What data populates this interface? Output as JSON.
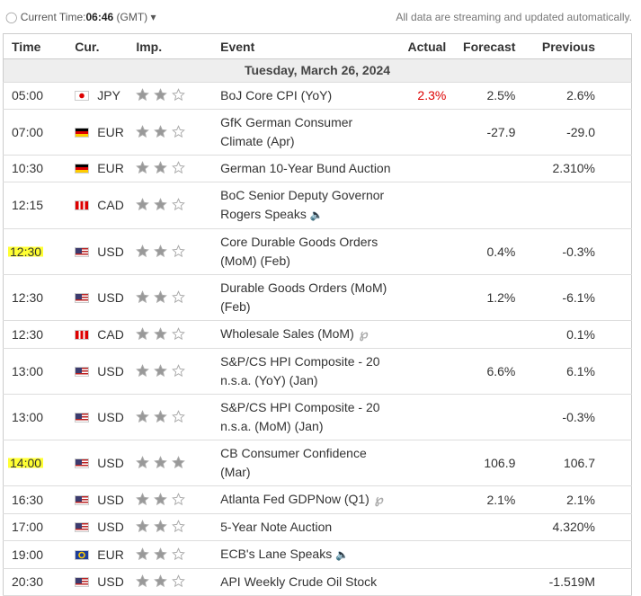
{
  "header": {
    "current_time_label": "Current Time:",
    "current_time": "06:46",
    "timezone": "(GMT)",
    "notice": "All data are streaming and updated automatically."
  },
  "table": {
    "columns": [
      "Time",
      "Cur.",
      "Imp.",
      "Event",
      "Actual",
      "Forecast",
      "Previous"
    ],
    "date": "Tuesday, March 26, 2024",
    "rows": [
      {
        "time": "05:00",
        "currency": "JPY",
        "importance": 2,
        "event": "BoJ Core CPI (YoY)",
        "actual": "2.3%",
        "forecast": "2.5%",
        "previous": "2.6%"
      },
      {
        "time": "07:00",
        "currency": "EUR",
        "importance": 2,
        "event": "GfK German Consumer Climate (Apr)",
        "forecast": "-27.9",
        "previous": "-29.0"
      },
      {
        "time": "10:30",
        "currency": "EUR",
        "importance": 2,
        "event": "German 10-Year Bund Auction",
        "previous": "2.310%"
      },
      {
        "time": "12:15",
        "currency": "CAD",
        "importance": 2,
        "event": "BoC Senior Deputy Governor Rogers Speaks"
      },
      {
        "time": "12:30",
        "currency": "USD",
        "importance": 2,
        "event": "Core Durable Goods Orders (MoM) (Feb)",
        "forecast": "0.4%",
        "previous": "-0.3%"
      },
      {
        "time": "12:30",
        "currency": "USD",
        "importance": 2,
        "event": "Durable Goods Orders (MoM) (Feb)",
        "forecast": "1.2%",
        "previous": "-6.1%"
      },
      {
        "time": "12:30",
        "currency": "CAD",
        "importance": 2,
        "event": "Wholesale Sales (MoM)",
        "previous": "0.1%"
      },
      {
        "time": "13:00",
        "currency": "USD",
        "importance": 2,
        "event": "S&P/CS HPI Composite - 20 n.s.a. (YoY) (Jan)",
        "forecast": "6.6%",
        "previous": "6.1%"
      },
      {
        "time": "13:00",
        "currency": "USD",
        "importance": 2,
        "event": "S&P/CS HPI Composite - 20 n.s.a. (MoM) (Jan)",
        "previous": "-0.3%"
      },
      {
        "time": "14:00",
        "currency": "USD",
        "importance": 3,
        "event": "CB Consumer Confidence (Mar)",
        "forecast": "106.9",
        "previous": "106.7"
      },
      {
        "time": "16:30",
        "currency": "USD",
        "importance": 2,
        "event": "Atlanta Fed GDPNow (Q1)",
        "forecast": "2.1%",
        "previous": "2.1%"
      },
      {
        "time": "17:00",
        "currency": "USD",
        "importance": 2,
        "event": "5-Year Note Auction",
        "previous": "4.320%"
      },
      {
        "time": "19:00",
        "currency": "EUR",
        "importance": 2,
        "event": "ECB's Lane Speaks"
      },
      {
        "time": "20:30",
        "currency": "USD",
        "importance": 2,
        "event": "API Weekly Crude Oil Stock",
        "previous": "-1.519M"
      }
    ]
  }
}
